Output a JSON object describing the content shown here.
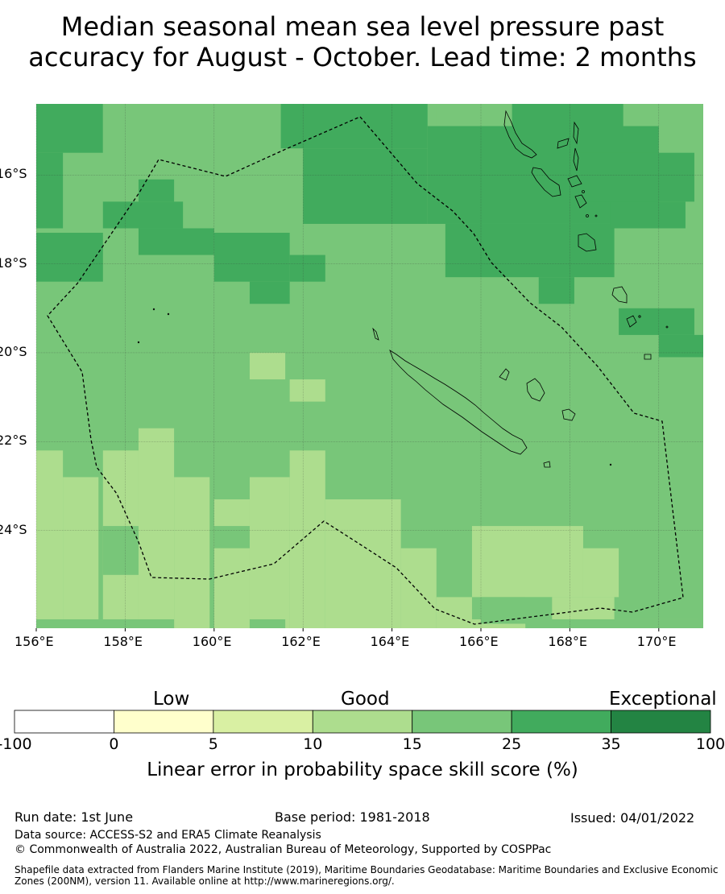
{
  "title_line1": "Median seasonal mean sea level pressure past",
  "title_line2": "accuracy for August - October. Lead time: 2 months",
  "map": {
    "lon_range": [
      156,
      171
    ],
    "lat_range": [
      -26.2,
      -14.4
    ],
    "lon_ticks": [
      "156°E",
      "158°E",
      "160°E",
      "162°E",
      "164°E",
      "166°E",
      "168°E",
      "170°E"
    ],
    "lat_ticks": [
      "16°S",
      "18°S",
      "20°S",
      "22°S",
      "24°S"
    ],
    "base_category": "15-25",
    "cells": [
      {
        "lon": 156,
        "lat": -14.4,
        "w": 1.5,
        "h": 1.1,
        "cat": "25-35"
      },
      {
        "lon": 156,
        "lat": -15.5,
        "w": 0.6,
        "h": 1.7,
        "cat": "25-35"
      },
      {
        "lon": 157.5,
        "lat": -14.4,
        "w": 4,
        "h": 1.1,
        "cat": "15-25"
      },
      {
        "lon": 161.5,
        "lat": -14.4,
        "w": 3.3,
        "h": 1.0,
        "cat": "25-35"
      },
      {
        "lon": 162,
        "lat": -15.4,
        "w": 2.8,
        "h": 1.7,
        "cat": "25-35"
      },
      {
        "lon": 165,
        "lat": -14.4,
        "w": 1.7,
        "h": 0.5,
        "cat": "15-25"
      },
      {
        "lon": 166.7,
        "lat": -14.4,
        "w": 2.5,
        "h": 1.1,
        "cat": "25-35"
      },
      {
        "lon": 164.8,
        "lat": -14.9,
        "w": 5.2,
        "h": 2.2,
        "cat": "25-35"
      },
      {
        "lon": 165.2,
        "lat": -17.1,
        "w": 3.8,
        "h": 1.2,
        "cat": "25-35"
      },
      {
        "lon": 168.2,
        "lat": -15.5,
        "w": 2.6,
        "h": 1.1,
        "cat": "25-35"
      },
      {
        "lon": 168.9,
        "lat": -16.6,
        "w": 1.7,
        "h": 0.6,
        "cat": "25-35"
      },
      {
        "lon": 167.3,
        "lat": -18.3,
        "w": 0.8,
        "h": 0.6,
        "cat": "25-35"
      },
      {
        "lon": 156,
        "lat": -17.3,
        "w": 1.5,
        "h": 1.1,
        "cat": "25-35"
      },
      {
        "lon": 157.5,
        "lat": -16.6,
        "w": 1.8,
        "h": 0.6,
        "cat": "25-35"
      },
      {
        "lon": 158.3,
        "lat": -16.1,
        "w": 0.8,
        "h": 0.5,
        "cat": "25-35"
      },
      {
        "lon": 158.3,
        "lat": -17.2,
        "w": 1.7,
        "h": 0.6,
        "cat": "25-35"
      },
      {
        "lon": 160,
        "lat": -17.3,
        "w": 1.7,
        "h": 1.1,
        "cat": "25-35"
      },
      {
        "lon": 161.7,
        "lat": -17.8,
        "w": 0.8,
        "h": 0.6,
        "cat": "25-35"
      },
      {
        "lon": 160.8,
        "lat": -18.4,
        "w": 0.9,
        "h": 0.5,
        "cat": "25-35"
      },
      {
        "lon": 169.1,
        "lat": -19.0,
        "w": 1.7,
        "h": 0.6,
        "cat": "25-35"
      },
      {
        "lon": 170,
        "lat": -19.6,
        "w": 1,
        "h": 0.5,
        "cat": "25-35"
      },
      {
        "lon": 160.8,
        "lat": -20.0,
        "w": 0.8,
        "h": 0.6,
        "cat": "10-15"
      },
      {
        "lon": 161.7,
        "lat": -20.6,
        "w": 0.8,
        "h": 0.5,
        "cat": "10-15"
      },
      {
        "lon": 156,
        "lat": -22.2,
        "w": 0.6,
        "h": 4.0,
        "cat": "10-15"
      },
      {
        "lon": 156.6,
        "lat": -22.8,
        "w": 0.8,
        "h": 3.4,
        "cat": "10-15"
      },
      {
        "lon": 157.5,
        "lat": -22.2,
        "w": 0.8,
        "h": 4.0,
        "cat": "10-15"
      },
      {
        "lon": 158.3,
        "lat": -21.7,
        "w": 0.8,
        "h": 4.5,
        "cat": "10-15"
      },
      {
        "lon": 159.1,
        "lat": -22.8,
        "w": 0.8,
        "h": 3.4,
        "cat": "10-15"
      },
      {
        "lon": 160,
        "lat": -23.3,
        "w": 0.8,
        "h": 2.9,
        "cat": "10-15"
      },
      {
        "lon": 160.8,
        "lat": -22.8,
        "w": 0.9,
        "h": 3.4,
        "cat": "10-15"
      },
      {
        "lon": 161.7,
        "lat": -22.2,
        "w": 0.8,
        "h": 4.0,
        "cat": "10-15"
      },
      {
        "lon": 162.5,
        "lat": -23.3,
        "w": 1.7,
        "h": 2.9,
        "cat": "10-15"
      },
      {
        "lon": 164.2,
        "lat": -24.4,
        "w": 0.8,
        "h": 1.8,
        "cat": "10-15"
      },
      {
        "lon": 165,
        "lat": -25.5,
        "w": 0.8,
        "h": 0.7,
        "cat": "10-15"
      },
      {
        "lon": 165.8,
        "lat": -23.9,
        "w": 2.5,
        "h": 1.6,
        "cat": "10-15"
      },
      {
        "lon": 168.3,
        "lat": -24.4,
        "w": 0.8,
        "h": 1.1,
        "cat": "10-15"
      },
      {
        "lon": 165,
        "lat": -26.0,
        "w": 5.9,
        "h": 0.2,
        "cat": "10-15"
      },
      {
        "lon": 167,
        "lat": -25.5,
        "w": 2.0,
        "h": 0.5,
        "cat": "10-15"
      },
      {
        "lon": 157.5,
        "lat": -23.9,
        "w": 0.8,
        "h": 1.1,
        "cat": "15-25"
      },
      {
        "lon": 160,
        "lat": -23.9,
        "w": 0.8,
        "h": 0.5,
        "cat": "15-25"
      },
      {
        "lon": 166,
        "lat": -25.5,
        "w": 1.6,
        "h": 0.6,
        "cat": "15-25"
      },
      {
        "lon": 156,
        "lat": -26.0,
        "w": 3.1,
        "h": 0.2,
        "cat": "15-25"
      },
      {
        "lon": 160.8,
        "lat": -26.0,
        "w": 0.8,
        "h": 0.2,
        "cat": "15-25"
      },
      {
        "lon": 167,
        "lat": -26.0,
        "w": 3.9,
        "h": 0.2,
        "cat": "15-25"
      }
    ]
  },
  "colorbar": {
    "categories": [
      "Low",
      "Good",
      "Exceptional"
    ],
    "ticks": [
      "-100",
      "0",
      "5",
      "10",
      "15",
      "25",
      "35",
      "100"
    ],
    "colors": [
      "#ffffff",
      "#ffffcc",
      "#d9f0a3",
      "#addd8e",
      "#78c679",
      "#41ab5d",
      "#238443"
    ],
    "label": "Linear error in probability space skill score (%)"
  },
  "footer": {
    "run_date": "Run date: 1st June",
    "base_period": "Base period: 1981-2018",
    "issued": "Issued: 04/01/2022",
    "data_source": "Data source: ACCESS-S2 and ERA5 Climate Reanalysis",
    "copyright": "© Commonwealth of Australia 2022, Australian Bureau of Meteorology, Supported by COSPPac",
    "shapefile": "Shapefile data extracted from Flanders Marine Institute (2019), Maritime Boundaries Geodatabase: Maritime Boundaries and Exclusive Economic Zones (200NM), version 11. Available online at http://www.marineregions.org/."
  }
}
